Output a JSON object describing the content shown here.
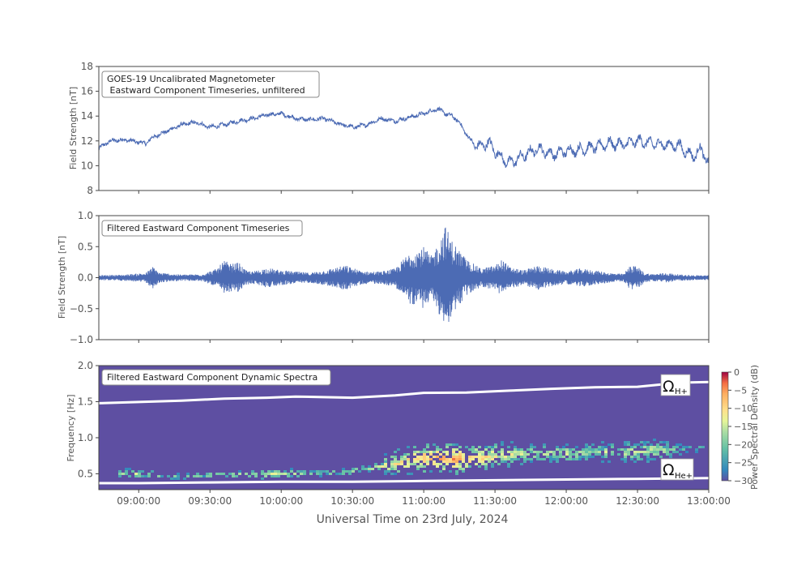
{
  "figure": {
    "xlabel": "Universal Time on 23rd July, 2024",
    "x_ticks": [
      "09:00:00",
      "09:30:00",
      "10:00:00",
      "10:30:00",
      "11:00:00",
      "11:30:00",
      "12:00:00",
      "12:30:00",
      "13:00:00"
    ]
  },
  "chart_data": [
    {
      "type": "line",
      "title": "GOES-19 Uncalibrated Magnetometer\n Eastward Component Timeseries, unfiltered",
      "ylabel": "Field Strength [nT]",
      "ylim": [
        8,
        18
      ],
      "y_ticks": [
        8,
        10,
        12,
        14,
        16,
        18
      ],
      "xlim_hours": [
        8.72,
        13.0
      ],
      "line_color": "#4c6bb4",
      "series": [
        {
          "x_hours": [
            8.72,
            8.8,
            8.9,
            9.0,
            9.05,
            9.1,
            9.2,
            9.3,
            9.4,
            9.5,
            9.6,
            9.7,
            9.8,
            9.9,
            10.0,
            10.1,
            10.2,
            10.3,
            10.4,
            10.5,
            10.6,
            10.7,
            10.8,
            10.9,
            11.0,
            11.1,
            11.15,
            11.2,
            11.25,
            11.3,
            11.35,
            11.4,
            11.45,
            11.5,
            11.55,
            11.6,
            11.7,
            11.8,
            11.9,
            12.0,
            12.1,
            12.2,
            12.3,
            12.4,
            12.5,
            12.6,
            12.7,
            12.8,
            12.85,
            12.9,
            12.95,
            13.0
          ],
          "y": [
            11.4,
            12.0,
            12.1,
            11.9,
            11.8,
            12.3,
            12.8,
            13.3,
            13.5,
            13.1,
            13.3,
            13.6,
            13.8,
            14.1,
            14.2,
            13.8,
            13.7,
            13.8,
            13.4,
            13.1,
            13.3,
            13.8,
            13.6,
            13.9,
            14.2,
            14.6,
            14.2,
            14.0,
            13.5,
            12.5,
            11.8,
            11.5,
            11.9,
            11.2,
            10.6,
            10.2,
            10.8,
            11.4,
            10.9,
            11.2,
            11.3,
            11.5,
            11.8,
            11.7,
            12.0,
            11.8,
            11.7,
            11.6,
            11.0,
            10.8,
            11.4,
            10.0
          ]
        }
      ],
      "label_lines": [
        "GOES-19 Uncalibrated Magnetometer",
        " Eastward Component Timeseries, unfiltered"
      ]
    },
    {
      "type": "line",
      "title": "Filtered Eastward Component Timeseries",
      "ylabel": "Field Strength [nT]",
      "ylim": [
        -1.0,
        1.0
      ],
      "y_ticks": [
        -1.0,
        -0.5,
        0.0,
        0.5,
        1.0
      ],
      "xlim_hours": [
        8.72,
        13.0
      ],
      "line_color": "#4c6bb4",
      "series": [
        {
          "name": "",
          "envelope_x_hours": [
            8.72,
            8.9,
            9.05,
            9.1,
            9.15,
            9.3,
            9.45,
            9.55,
            9.6,
            9.65,
            9.7,
            9.75,
            9.8,
            9.9,
            10.0,
            10.1,
            10.2,
            10.3,
            10.45,
            10.55,
            10.6,
            10.7,
            10.8,
            10.9,
            11.0,
            11.05,
            11.1,
            11.15,
            11.2,
            11.25,
            11.3,
            11.4,
            11.5,
            11.55,
            11.6,
            11.7,
            11.8,
            11.9,
            12.0,
            12.1,
            12.2,
            12.3,
            12.4,
            12.45,
            12.5,
            12.55,
            12.6,
            12.7,
            12.8,
            12.9,
            13.0
          ],
          "envelope_amp": [
            0.04,
            0.05,
            0.08,
            0.18,
            0.08,
            0.05,
            0.06,
            0.15,
            0.28,
            0.22,
            0.25,
            0.12,
            0.1,
            0.16,
            0.12,
            0.1,
            0.08,
            0.12,
            0.2,
            0.12,
            0.1,
            0.1,
            0.15,
            0.42,
            0.5,
            0.35,
            0.55,
            0.85,
            0.6,
            0.45,
            0.3,
            0.15,
            0.2,
            0.3,
            0.18,
            0.12,
            0.2,
            0.14,
            0.1,
            0.15,
            0.12,
            0.08,
            0.06,
            0.2,
            0.18,
            0.08,
            0.06,
            0.08,
            0.05,
            0.04,
            0.04
          ]
        }
      ]
    },
    {
      "type": "heatmap",
      "title": "Filtered Eastward Component Dynamic Spectra",
      "ylabel": "Frequency [Hz]",
      "ylim": [
        0.28,
        2.0
      ],
      "y_ticks": [
        0.5,
        1.0,
        1.5,
        2.0
      ],
      "xlim_hours": [
        8.72,
        13.0
      ],
      "colorbar": {
        "label": "Power Spectral Density (dB)",
        "range": [
          -30,
          0
        ],
        "ticks": [
          0,
          -5,
          -10,
          -15,
          -20,
          -25,
          -30
        ]
      },
      "background_db": -30,
      "emission_band": {
        "x_hours": [
          8.85,
          9.0,
          9.2,
          9.5,
          9.8,
          10.0,
          10.2,
          10.4,
          10.6,
          10.8,
          11.0,
          11.2,
          11.4,
          11.6,
          11.8,
          12.0,
          12.2,
          12.4,
          12.6,
          12.8,
          12.95
        ],
        "center_hz": [
          0.52,
          0.52,
          0.48,
          0.5,
          0.5,
          0.52,
          0.52,
          0.54,
          0.58,
          0.66,
          0.74,
          0.72,
          0.74,
          0.78,
          0.8,
          0.8,
          0.82,
          0.82,
          0.84,
          0.86,
          0.88
        ],
        "peak_db": [
          -14,
          -12,
          -18,
          -16,
          -10,
          -12,
          -16,
          -15,
          -14,
          -8,
          -4,
          -2,
          -6,
          -10,
          -14,
          -12,
          -14,
          -12,
          -11,
          -18,
          -22
        ]
      },
      "lines": [
        {
          "label": "Ω",
          "subscript": "H+",
          "color": "#ffffff",
          "x_hours": [
            8.72,
            9.0,
            9.3,
            9.6,
            9.9,
            10.1,
            10.5,
            10.8,
            11.0,
            11.3,
            11.6,
            11.9,
            12.2,
            12.5,
            12.8,
            13.0
          ],
          "freq_hz": [
            1.48,
            1.49,
            1.51,
            1.54,
            1.56,
            1.57,
            1.56,
            1.59,
            1.62,
            1.63,
            1.65,
            1.68,
            1.7,
            1.71,
            1.76,
            1.77
          ]
        },
        {
          "label": "Ω",
          "subscript": "He+",
          "color": "#ffffff",
          "x_hours": [
            8.72,
            9.0,
            9.5,
            10.0,
            10.5,
            11.0,
            11.5,
            12.0,
            12.5,
            13.0
          ],
          "freq_hz": [
            0.37,
            0.37,
            0.38,
            0.39,
            0.39,
            0.4,
            0.41,
            0.42,
            0.43,
            0.44
          ]
        }
      ]
    }
  ]
}
